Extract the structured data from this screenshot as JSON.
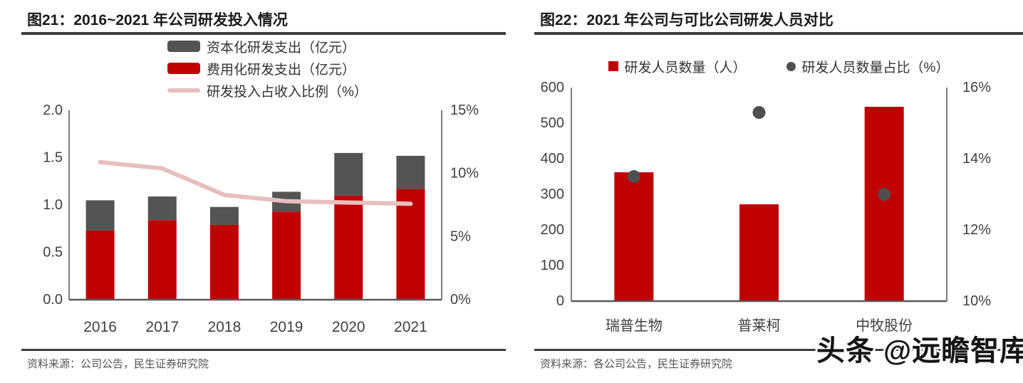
{
  "panels": [
    {
      "title": "图21：2016~2021 年公司研发投入情况",
      "source": "资料来源：公司公告，民生证券研究院"
    },
    {
      "title": "图22：2021 年公司与可比公司研发人员对比",
      "source": "资料来源：各公司公告，民生证券研究院"
    }
  ],
  "watermark": "头条 @远瞻智库",
  "colors": {
    "red": "#C00000",
    "dark_gray": "#545454",
    "pink": "#E7BFBE",
    "dot_gray": "#4F4F4F",
    "axis_line": "#7F7F7F",
    "x_axis_line": "#595959",
    "tick_text": "#404040",
    "rule": "#3F3F3F"
  },
  "chart_data": [
    {
      "type": "bar",
      "subtype": "stacked-bar-with-line",
      "title": "图21：2016~2021 年公司研发投入情况",
      "categories": [
        "2016",
        "2017",
        "2018",
        "2019",
        "2020",
        "2021"
      ],
      "series": [
        {
          "name": "费用化研发支出（亿元）",
          "type": "bar",
          "axis": "left",
          "color": "#C00000",
          "values": [
            0.73,
            0.84,
            0.79,
            0.93,
            1.1,
            1.17
          ]
        },
        {
          "name": "资本化研发支出（亿元）",
          "type": "bar",
          "axis": "left",
          "color": "#545454",
          "values": [
            0.32,
            0.25,
            0.19,
            0.21,
            0.45,
            0.35
          ]
        },
        {
          "name": "研发投入占收入比例（%）",
          "type": "line",
          "axis": "right",
          "color": "#E7BFBE",
          "values": [
            10.9,
            10.4,
            8.3,
            7.8,
            7.7,
            7.6
          ]
        }
      ],
      "left_axis": {
        "min": 0,
        "max": 2.0,
        "ticks": [
          "2.0",
          "1.5",
          "1.0",
          "0.5",
          "0.0"
        ]
      },
      "right_axis": {
        "min": 0,
        "max": 15,
        "ticks": [
          "15%",
          "10%",
          "5%",
          "0%"
        ]
      },
      "legend_position": "top",
      "grid": false
    },
    {
      "type": "bar",
      "subtype": "bar-with-scatter",
      "title": "图22：2021 年公司与可比公司研发人员对比",
      "categories": [
        "瑞普生物",
        "普莱柯",
        "中牧股份"
      ],
      "series": [
        {
          "name": "研发人员数量（人）",
          "type": "bar",
          "axis": "left",
          "color": "#C00000",
          "values": [
            362,
            272,
            546
          ]
        },
        {
          "name": "研发人员数量占比（%）",
          "type": "scatter",
          "axis": "right",
          "color": "#4F4F4F",
          "values": [
            13.5,
            15.3,
            13.0
          ]
        }
      ],
      "left_axis": {
        "min": 0,
        "max": 600,
        "ticks": [
          "600",
          "500",
          "400",
          "300",
          "200",
          "100",
          "0"
        ]
      },
      "right_axis": {
        "min": 10,
        "max": 16,
        "ticks": [
          "16%",
          "14%",
          "12%",
          "10%"
        ]
      },
      "legend_position": "top",
      "grid": false
    }
  ]
}
